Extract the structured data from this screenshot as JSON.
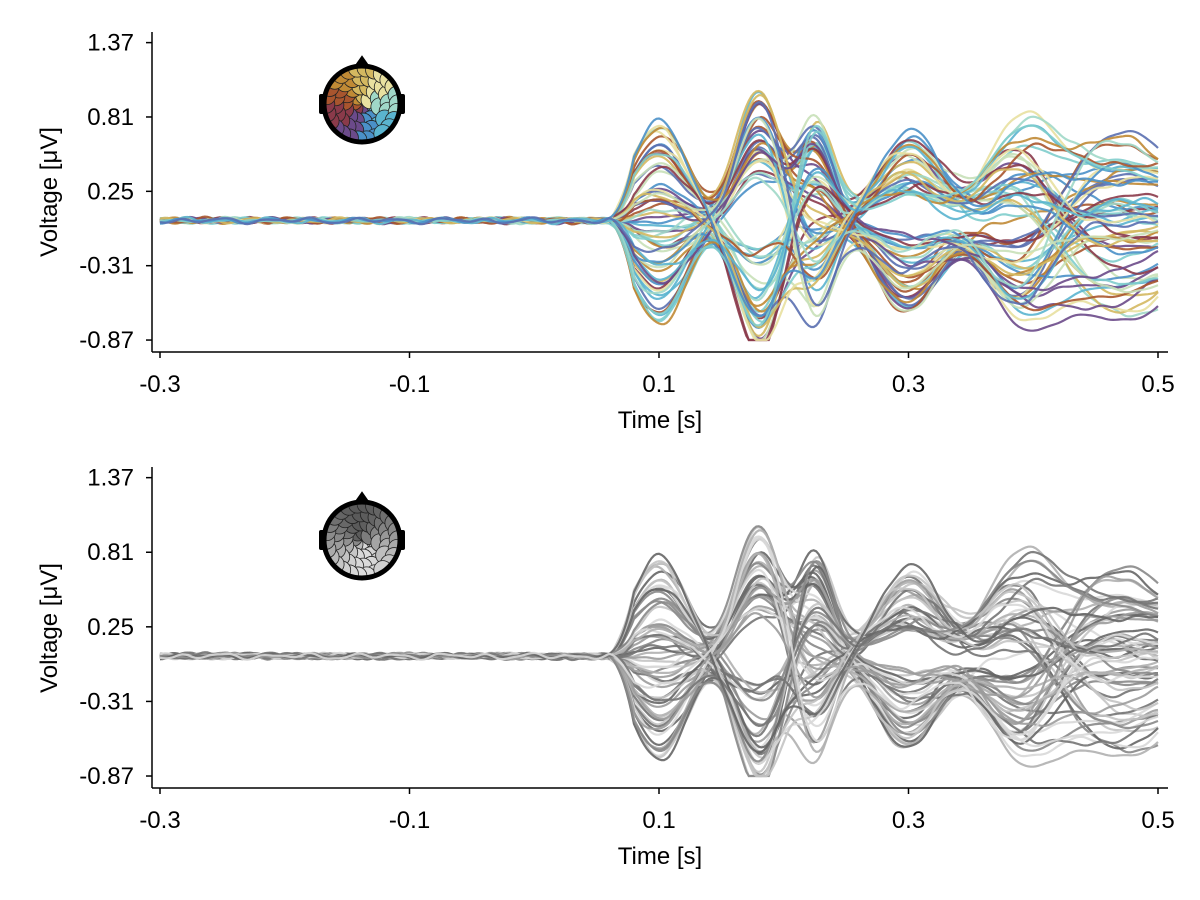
{
  "chart_data": [
    {
      "type": "line",
      "color_mode": "color",
      "xlabel": "Time [s]",
      "ylabel": "Voltage [μV]",
      "xlim": [
        -0.3,
        0.5
      ],
      "ylim": [
        -0.96,
        1.45
      ],
      "xticks": [
        -0.3,
        -0.1,
        0.1,
        0.3,
        0.5
      ],
      "xtick_labels": [
        "-0.3",
        "-0.1",
        "0.1",
        "0.3",
        "0.5"
      ],
      "yticks": [
        -0.87,
        -0.31,
        0.25,
        0.81,
        1.37
      ],
      "ytick_labels": [
        "-0.87",
        "-0.31",
        "0.25",
        "0.81",
        "1.37"
      ],
      "grid": false,
      "inset": "topographic head map of channel colors",
      "series_count": 64,
      "waveform": {
        "baseline_amplitude": 0.02,
        "onset": 0.06,
        "components": [
          {
            "latency": 0.1,
            "width": 0.022
          },
          {
            "latency": 0.18,
            "width": 0.018
          },
          {
            "latency": 0.225,
            "width": 0.015
          },
          {
            "latency": 0.3,
            "width": 0.025
          },
          {
            "latency": 0.39,
            "width": 0.028
          },
          {
            "latency": 0.47,
            "width": 0.05
          }
        ],
        "range": [
          -0.9,
          1.37
        ]
      },
      "palette": [
        "#7fcdcc",
        "#5ab4cf",
        "#4a90c8",
        "#5a6fb0",
        "#6b4a8a",
        "#8a3a4a",
        "#a8552e",
        "#c08a35",
        "#d4b860",
        "#e8e0a0",
        "#c8e0b8",
        "#a0d8c8"
      ]
    },
    {
      "type": "line",
      "color_mode": "grayscale",
      "xlabel": "Time [s]",
      "ylabel": "Voltage [μV]",
      "xlim": [
        -0.3,
        0.5
      ],
      "ylim": [
        -0.96,
        1.45
      ],
      "xticks": [
        -0.3,
        -0.1,
        0.1,
        0.3,
        0.5
      ],
      "xtick_labels": [
        "-0.3",
        "-0.1",
        "0.1",
        "0.3",
        "0.5"
      ],
      "yticks": [
        -0.87,
        -0.31,
        0.25,
        0.81,
        1.37
      ],
      "ytick_labels": [
        "-0.87",
        "-0.31",
        "0.25",
        "0.81",
        "1.37"
      ],
      "grid": false,
      "inset": "topographic head map in grayscale",
      "series_count": 64,
      "waveform": {
        "baseline_amplitude": 0.02,
        "onset": 0.06,
        "components": [
          {
            "latency": 0.1,
            "width": 0.022
          },
          {
            "latency": 0.18,
            "width": 0.018
          },
          {
            "latency": 0.225,
            "width": 0.015
          },
          {
            "latency": 0.3,
            "width": 0.025
          },
          {
            "latency": 0.39,
            "width": 0.028
          },
          {
            "latency": 0.47,
            "width": 0.05
          }
        ],
        "range": [
          -0.9,
          1.37
        ]
      },
      "palette": [
        "#d8d8d8",
        "#c4c4c4",
        "#b0b0b0",
        "#9c9c9c",
        "#888888",
        "#747474",
        "#666666"
      ]
    }
  ]
}
